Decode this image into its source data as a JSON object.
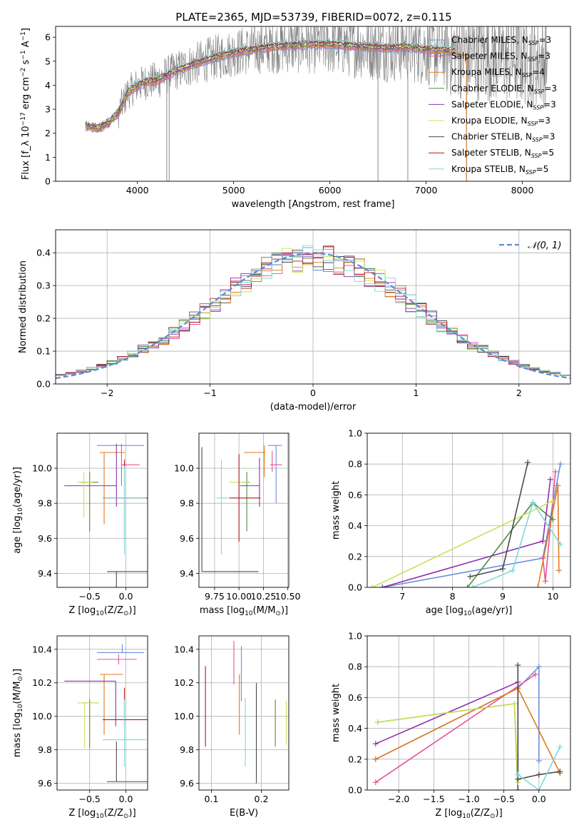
{
  "figure_title": "PLATE=2365, MJD=53739, FIBERID=0072, z=0.115",
  "colors": {
    "Chabrier MILES": "#6a8fdd",
    "Salpeter MILES": "#e7539a",
    "Kroupa MILES": "#e07a1f",
    "Chabrier ELODIE": "#4f8f3f",
    "Salpeter ELODIE": "#8e2fae",
    "Kroupa ELODIE": "#c9e25a",
    "Chabrier STELIB": "#4a4a4a",
    "Salpeter STELIB": "#b5171b",
    "Kroupa STELIB": "#7fd8d8",
    "data": "#7f7f7f",
    "gaussian": "#5b8bd6"
  },
  "chart_data": [
    {
      "id": "spectrum",
      "type": "line",
      "title": "PLATE=2365, MJD=53739, FIBERID=0072, z=0.115",
      "xlabel": "wavelength [Angstrom, rest frame]",
      "ylabel": "Flux [f_λ 10^-17 erg cm^-2 s^-1 A^-1]",
      "xlim": [
        3150,
        8500
      ],
      "ylim": [
        0,
        6.45
      ],
      "xticks": [
        4000,
        5000,
        6000,
        7000,
        8000
      ],
      "yticks": [
        0,
        1,
        2,
        3,
        4,
        5,
        6
      ],
      "legend_position": "upper-right",
      "legend": [
        {
          "label": "Chabrier MILES, N_SSP=3",
          "parts": [
            "Chabrier MILES, N",
            "SSP",
            "=3"
          ],
          "series": "Chabrier MILES"
        },
        {
          "label": "Salpeter MILES, N_SSP=3",
          "parts": [
            "Salpeter MILES, N",
            "SSP",
            "=3"
          ],
          "series": "Salpeter MILES"
        },
        {
          "label": "Kroupa MILES, N_SSP=4",
          "parts": [
            "Kroupa MILES, N",
            "SSP",
            "=4"
          ],
          "series": "Kroupa MILES"
        },
        {
          "label": "Chabrier ELODIE, N_SSP=3",
          "parts": [
            "Chabrier ELODIE, N",
            "SSP",
            "=3"
          ],
          "series": "Chabrier ELODIE"
        },
        {
          "label": "Salpeter ELODIE, N_SSP=3",
          "parts": [
            "Salpeter ELODIE, N",
            "SSP",
            "=3"
          ],
          "series": "Salpeter ELODIE"
        },
        {
          "label": "Kroupa ELODIE, N_SSP=3",
          "parts": [
            "Kroupa ELODIE, N",
            "SSP",
            "=3"
          ],
          "series": "Kroupa ELODIE"
        },
        {
          "label": "Chabrier STELIB, N_SSP=3",
          "parts": [
            "Chabrier STELIB, N",
            "SSP",
            "=3"
          ],
          "series": "Chabrier STELIB"
        },
        {
          "label": "Salpeter STELIB, N_SSP=5",
          "parts": [
            "Salpeter STELIB, N",
            "SSP",
            "=5"
          ],
          "series": "Salpeter STELIB"
        },
        {
          "label": "Kroupa STELIB, N_SSP=5",
          "parts": [
            "Kroupa STELIB, N",
            "SSP",
            "=5"
          ],
          "series": "Kroupa STELIB"
        }
      ],
      "continuum": {
        "x": [
          3460,
          3600,
          3700,
          3800,
          3900,
          4000,
          4100,
          4200,
          4400,
          4600,
          4800,
          5000,
          5200,
          5400,
          5600,
          5800,
          6000,
          6200,
          6400,
          6600,
          6800,
          7000,
          7200,
          7400
        ],
        "y": [
          2.3,
          2.2,
          2.45,
          2.85,
          3.7,
          4.0,
          4.15,
          4.2,
          4.6,
          4.9,
          5.15,
          5.35,
          5.5,
          5.6,
          5.65,
          5.7,
          5.7,
          5.65,
          5.6,
          5.55,
          5.6,
          5.5,
          5.45,
          5.35
        ]
      },
      "data_range": [
        3460,
        8260
      ]
    },
    {
      "id": "residuals",
      "type": "line",
      "xlabel": "(data-model)/error",
      "ylabel": "Normed distribution",
      "xlim": [
        -2.5,
        2.5
      ],
      "ylim": [
        0,
        0.47
      ],
      "xticks": [
        -2,
        -1,
        0,
        1,
        2
      ],
      "yticks": [
        0.0,
        0.1,
        0.2,
        0.3,
        0.4
      ],
      "legend": [
        {
          "label": "N(0,1)",
          "style": "dashed"
        }
      ],
      "gaussian": {
        "mean": 0,
        "sigma": 1
      }
    },
    {
      "id": "age_vs_Z",
      "type": "scatter",
      "xlabel": "Z [log10(Z/Z⊙)]",
      "ylabel": "age [log10(age/yr)]",
      "xlim": [
        -0.95,
        0.3
      ],
      "ylim": [
        9.32,
        10.2
      ],
      "xticks": [
        -0.5,
        0.0
      ],
      "yticks": [
        9.4,
        9.6,
        9.8,
        10.0
      ],
      "points": [
        {
          "series": "Chabrier MILES",
          "x": -0.05,
          "y": 10.13,
          "xerr": [
            0.35,
            0.3
          ],
          "yerr": [
            0.0,
            0.0
          ]
        },
        {
          "series": "Salpeter MILES",
          "x": -0.06,
          "y": 10.02,
          "xerr": [
            0.0,
            0.25
          ],
          "yerr": [
            0.12,
            0.12
          ]
        },
        {
          "series": "Kroupa MILES",
          "x": -0.3,
          "y": 10.09,
          "xerr": [
            0.06,
            0.29
          ],
          "yerr": [
            0.41,
            0.0
          ]
        },
        {
          "series": "Chabrier ELODIE",
          "x": -0.5,
          "y": 9.92,
          "xerr": [
            0.12,
            0.12
          ],
          "yerr": [
            0.28,
            0.06
          ]
        },
        {
          "series": "Salpeter ELODIE",
          "x": -0.13,
          "y": 9.9,
          "xerr": [
            0.72,
            0.0
          ],
          "yerr": [
            0.12,
            0.24
          ]
        },
        {
          "series": "Kroupa ELODIE",
          "x": -0.58,
          "y": 9.92,
          "xerr": [
            0.09,
            0.12
          ],
          "yerr": [
            0.2,
            0.06
          ]
        },
        {
          "series": "Chabrier STELIB",
          "x": -0.13,
          "y": 9.41,
          "xerr": [
            0.13,
            0.47
          ],
          "yerr": [
            0.2,
            0.0
          ]
        },
        {
          "series": "Salpeter STELIB",
          "x": -0.02,
          "y": 9.83,
          "xerr": [
            0.3,
            0.32
          ],
          "yerr": [
            0.23,
            0.22
          ]
        },
        {
          "series": "Kroupa STELIB",
          "x": -0.02,
          "y": 9.83,
          "xerr": [
            0.3,
            0.3
          ],
          "yerr": [
            0.32,
            0.18
          ]
        }
      ]
    },
    {
      "id": "age_vs_mass",
      "type": "scatter",
      "xlabel": "mass [log10(M/M⊙)]",
      "xlim": [
        9.59,
        10.51
      ],
      "ylim": [
        9.32,
        10.2
      ],
      "xticks": [
        9.75,
        10.0,
        10.25,
        10.5
      ],
      "yticks": [
        9.4,
        9.6,
        9.8,
        10.0
      ],
      "points": [
        {
          "series": "Chabrier MILES",
          "x": 10.38,
          "y": 10.13,
          "xerr": [
            0.08,
            0.06
          ],
          "yerr": [
            0.33,
            0.0
          ]
        },
        {
          "series": "Salpeter MILES",
          "x": 10.34,
          "y": 10.02,
          "xerr": [
            0.02,
            0.1
          ],
          "yerr": [
            0.04,
            0.08
          ]
        },
        {
          "series": "Kroupa MILES",
          "x": 10.26,
          "y": 10.09,
          "xerr": [
            0.21,
            0.01
          ],
          "yerr": [
            0.14,
            0.04
          ]
        },
        {
          "series": "Chabrier ELODIE",
          "x": 10.08,
          "y": 9.92,
          "xerr": [
            0.04,
            0.03
          ],
          "yerr": [
            0.28,
            0.06
          ]
        },
        {
          "series": "Salpeter ELODIE",
          "x": 10.21,
          "y": 9.9,
          "xerr": [
            0.2,
            0.0
          ],
          "yerr": [
            0.12,
            0.16
          ]
        },
        {
          "series": "Kroupa ELODIE",
          "x": 9.9,
          "y": 9.92,
          "xerr": [
            0.0,
            0.2
          ],
          "yerr": [
            0.0,
            0.0
          ]
        },
        {
          "series": "Chabrier STELIB",
          "x": 9.62,
          "y": 9.41,
          "xerr": [
            0.0,
            0.58
          ],
          "yerr": [
            0.0,
            0.71
          ]
        },
        {
          "series": "Salpeter STELIB",
          "x": 10.0,
          "y": 9.83,
          "xerr": [
            0.1,
            0.22
          ],
          "yerr": [
            0.25,
            0.25
          ]
        },
        {
          "series": "Kroupa STELIB",
          "x": 9.82,
          "y": 9.83,
          "xerr": [
            0.05,
            0.07
          ],
          "yerr": [
            0.32,
            0.22
          ]
        }
      ]
    },
    {
      "id": "weight_vs_age",
      "type": "line",
      "xlabel": "age [log10(age/yr)]",
      "ylabel": "mass weight",
      "xlim": [
        6.3,
        10.35
      ],
      "ylim": [
        0,
        1
      ],
      "xticks": [
        7,
        8,
        9,
        10
      ],
      "yticks": [
        0.0,
        0.2,
        0.4,
        0.6,
        0.8,
        1.0
      ],
      "series": [
        {
          "name": "Chabrier MILES",
          "x": [
            6.6,
            9.8,
            10.15
          ],
          "y": [
            0.0,
            0.19,
            0.8
          ]
        },
        {
          "name": "Salpeter MILES",
          "x": [
            9.8,
            9.85,
            10.05
          ],
          "y": [
            0.19,
            0.04,
            0.75
          ]
        },
        {
          "name": "Kroupa MILES",
          "x": [
            9.7,
            10.1,
            10.12
          ],
          "y": [
            0.0,
            0.66,
            0.11
          ]
        },
        {
          "name": "Chabrier ELODIE",
          "x": [
            8.3,
            9.6,
            10.0
          ],
          "y": [
            0.0,
            0.55,
            0.44
          ]
        },
        {
          "name": "Salpeter ELODIE",
          "x": [
            6.6,
            9.8,
            9.95
          ],
          "y": [
            0.0,
            0.3,
            0.7
          ]
        },
        {
          "name": "Kroupa ELODIE",
          "x": [
            6.4,
            10.0
          ],
          "y": [
            0.0,
            0.56
          ]
        },
        {
          "name": "Chabrier STELIB",
          "x": [
            8.35,
            9.0,
            9.5
          ],
          "y": [
            0.07,
            0.12,
            0.81
          ]
        },
        {
          "name": "Salpeter STELIB",
          "x": [],
          "y": []
        },
        {
          "name": "Kroupa STELIB",
          "x": [
            8.4,
            9.2,
            9.6,
            10.15
          ],
          "y": [
            0.0,
            0.11,
            0.55,
            0.28
          ]
        }
      ]
    },
    {
      "id": "mass_vs_Z",
      "type": "scatter",
      "xlabel": "Z [log10(Z/Z⊙)]",
      "ylabel": "mass [log10(M/M⊙)]",
      "xlim": [
        -0.95,
        0.3
      ],
      "ylim": [
        9.56,
        10.48
      ],
      "xticks": [
        -0.5,
        0.0
      ],
      "yticks": [
        9.6,
        9.8,
        10.0,
        10.2,
        10.4
      ],
      "points": [
        {
          "series": "Chabrier MILES",
          "x": -0.05,
          "y": 10.38,
          "xerr": [
            0.35,
            0.3
          ],
          "yerr": [
            0.0,
            0.05
          ]
        },
        {
          "series": "Salpeter MILES",
          "x": -0.1,
          "y": 10.34,
          "xerr": [
            0.3,
            0.25
          ],
          "yerr": [
            0.03,
            0.03
          ]
        },
        {
          "series": "Kroupa MILES",
          "x": -0.3,
          "y": 10.25,
          "xerr": [
            0.06,
            0.26
          ],
          "yerr": [
            0.36,
            0.0
          ]
        },
        {
          "series": "Chabrier ELODIE",
          "x": -0.5,
          "y": 10.08,
          "xerr": [
            0.1,
            0.12
          ],
          "yerr": [
            0.27,
            0.02
          ]
        },
        {
          "series": "Salpeter ELODIE",
          "x": -0.14,
          "y": 10.21,
          "xerr": [
            0.71,
            0.0
          ],
          "yerr": [
            0.27,
            0.0
          ]
        },
        {
          "series": "Kroupa ELODIE",
          "x": -0.57,
          "y": 10.08,
          "xerr": [
            0.1,
            0.2
          ],
          "yerr": [
            0.27,
            0.0
          ]
        },
        {
          "series": "Chabrier STELIB",
          "x": -0.13,
          "y": 9.61,
          "xerr": [
            0.13,
            0.47
          ],
          "yerr": [
            0.0,
            0.24
          ]
        },
        {
          "series": "Salpeter STELIB",
          "x": -0.02,
          "y": 9.98,
          "xerr": [
            0.3,
            0.32
          ],
          "yerr": [
            0.03,
            0.19
          ]
        },
        {
          "series": "Kroupa STELIB",
          "x": -0.02,
          "y": 9.86,
          "xerr": [
            0.3,
            0.3
          ],
          "yerr": [
            0.16,
            0.24
          ]
        }
      ]
    },
    {
      "id": "mass_vs_ebv",
      "type": "scatter",
      "xlabel": "E(B-V)",
      "xlim": [
        0.075,
        0.255
      ],
      "ylim": [
        9.56,
        10.48
      ],
      "xticks": [
        0.1,
        0.2
      ],
      "yticks": [
        9.6,
        9.8,
        10.0,
        10.2,
        10.4
      ],
      "points": [
        {
          "series": "Chabrier MILES",
          "x": 0.16,
          "y": 10.3,
          "xerr": [
            0.0,
            0.0
          ],
          "yerr": [
            0.21,
            0.12
          ]
        },
        {
          "series": "Salpeter MILES",
          "x": 0.145,
          "y": 10.33,
          "xerr": [
            0.0,
            0.0
          ],
          "yerr": [
            0.14,
            0.12
          ]
        },
        {
          "series": "Kroupa MILES",
          "x": 0.156,
          "y": 10.07,
          "xerr": [
            0.0,
            0.0
          ],
          "yerr": [
            0.18,
            0.18
          ]
        },
        {
          "series": "Chabrier ELODIE",
          "x": 0.228,
          "y": 9.98,
          "xerr": [
            0.0,
            0.0
          ],
          "yerr": [
            0.16,
            0.12
          ]
        },
        {
          "series": "Salpeter ELODIE",
          "x": 0.155,
          "y": 10.2,
          "xerr": [
            0.0,
            0.0
          ],
          "yerr": [
            0.0,
            0.0
          ]
        },
        {
          "series": "Kroupa ELODIE",
          "x": 0.25,
          "y": 9.96,
          "xerr": [
            0.0,
            0.0
          ],
          "yerr": [
            0.13,
            0.13
          ]
        },
        {
          "series": "Chabrier STELIB",
          "x": 0.19,
          "y": 10.0,
          "xerr": [
            0.0,
            0.0
          ],
          "yerr": [
            0.4,
            0.2
          ]
        },
        {
          "series": "Salpeter STELIB",
          "x": 0.088,
          "y": 10.05,
          "xerr": [
            0.0,
            0.0
          ],
          "yerr": [
            0.23,
            0.25
          ]
        },
        {
          "series": "Kroupa STELIB",
          "x": 0.168,
          "y": 9.91,
          "xerr": [
            0.0,
            0.0
          ],
          "yerr": [
            0.21,
            0.2
          ]
        }
      ]
    },
    {
      "id": "weight_vs_Z",
      "type": "line",
      "xlabel": "Z [log10(Z/Z⊙)]",
      "ylabel": "mass weight",
      "xlim": [
        -2.45,
        0.45
      ],
      "ylim": [
        0,
        1
      ],
      "xticks": [
        -2.0,
        -1.5,
        -1.0,
        -0.5,
        0.0
      ],
      "yticks": [
        0.0,
        0.2,
        0.4,
        0.6,
        0.8,
        1.0
      ],
      "series": [
        {
          "name": "Chabrier MILES",
          "x": [
            -2.33,
            -0.3,
            0.0,
            0.0
          ],
          "y": [
            0.2,
            0.66,
            0.8,
            0.19
          ]
        },
        {
          "name": "Salpeter MILES",
          "x": [
            -2.33,
            -0.05
          ],
          "y": [
            0.05,
            0.75
          ]
        },
        {
          "name": "Kroupa MILES",
          "x": [
            -2.33,
            -0.3,
            0.3
          ],
          "y": [
            0.2,
            0.66,
            0.11
          ]
        },
        {
          "name": "Chabrier ELODIE",
          "x": [
            -2.3,
            -0.35,
            -0.3
          ],
          "y": [
            0.44,
            0.56,
            0.0
          ]
        },
        {
          "name": "Salpeter ELODIE",
          "x": [
            -2.33,
            -0.3,
            -0.3
          ],
          "y": [
            0.3,
            0.7,
            0.0
          ]
        },
        {
          "name": "Kroupa ELODIE",
          "x": [
            -2.3,
            -0.35,
            -0.3
          ],
          "y": [
            0.44,
            0.56,
            0.05
          ]
        },
        {
          "name": "Chabrier STELIB",
          "x": [
            -0.3,
            -0.3,
            0.0,
            0.3
          ],
          "y": [
            0.81,
            0.07,
            0.1,
            0.12
          ]
        },
        {
          "name": "Salpeter STELIB",
          "x": [],
          "y": []
        },
        {
          "name": "Kroupa STELIB",
          "x": [
            -0.3,
            0.0,
            0.3
          ],
          "y": [
            0.1,
            0.0,
            0.28
          ]
        }
      ]
    }
  ]
}
